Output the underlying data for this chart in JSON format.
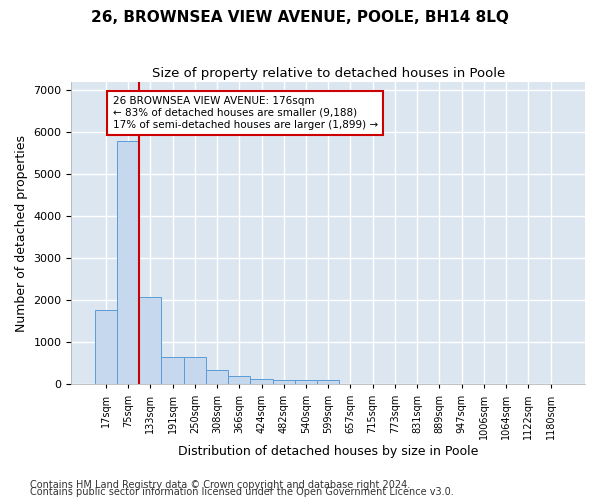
{
  "title": "26, BROWNSEA VIEW AVENUE, POOLE, BH14 8LQ",
  "subtitle": "Size of property relative to detached houses in Poole",
  "xlabel": "Distribution of detached houses by size in Poole",
  "ylabel": "Number of detached properties",
  "footnote1": "Contains HM Land Registry data © Crown copyright and database right 2024.",
  "footnote2": "Contains public sector information licensed under the Open Government Licence v3.0.",
  "bar_labels": [
    "17sqm",
    "75sqm",
    "133sqm",
    "191sqm",
    "250sqm",
    "308sqm",
    "366sqm",
    "424sqm",
    "482sqm",
    "540sqm",
    "599sqm",
    "657sqm",
    "715sqm",
    "773sqm",
    "831sqm",
    "889sqm",
    "947sqm",
    "1006sqm",
    "1064sqm",
    "1122sqm",
    "1180sqm"
  ],
  "bar_values": [
    1780,
    5800,
    2090,
    650,
    650,
    340,
    195,
    130,
    110,
    95,
    95,
    0,
    0,
    0,
    0,
    0,
    0,
    0,
    0,
    0,
    0
  ],
  "bar_color": "#c5d8ed",
  "bar_edgecolor": "#5b9bd5",
  "vline_x": 1.5,
  "vline_color": "#cc0000",
  "annotation_text": "26 BROWNSEA VIEW AVENUE: 176sqm\n← 83% of detached houses are smaller (9,188)\n17% of semi-detached houses are larger (1,899) →",
  "ylim": [
    0,
    7200
  ],
  "yticks": [
    0,
    1000,
    2000,
    3000,
    4000,
    5000,
    6000,
    7000
  ],
  "bg_color": "#dce6f1",
  "grid_color": "#ffffff",
  "title_fontsize": 11,
  "subtitle_fontsize": 9.5,
  "axis_label_fontsize": 9,
  "tick_fontsize": 8,
  "footnote_fontsize": 7
}
